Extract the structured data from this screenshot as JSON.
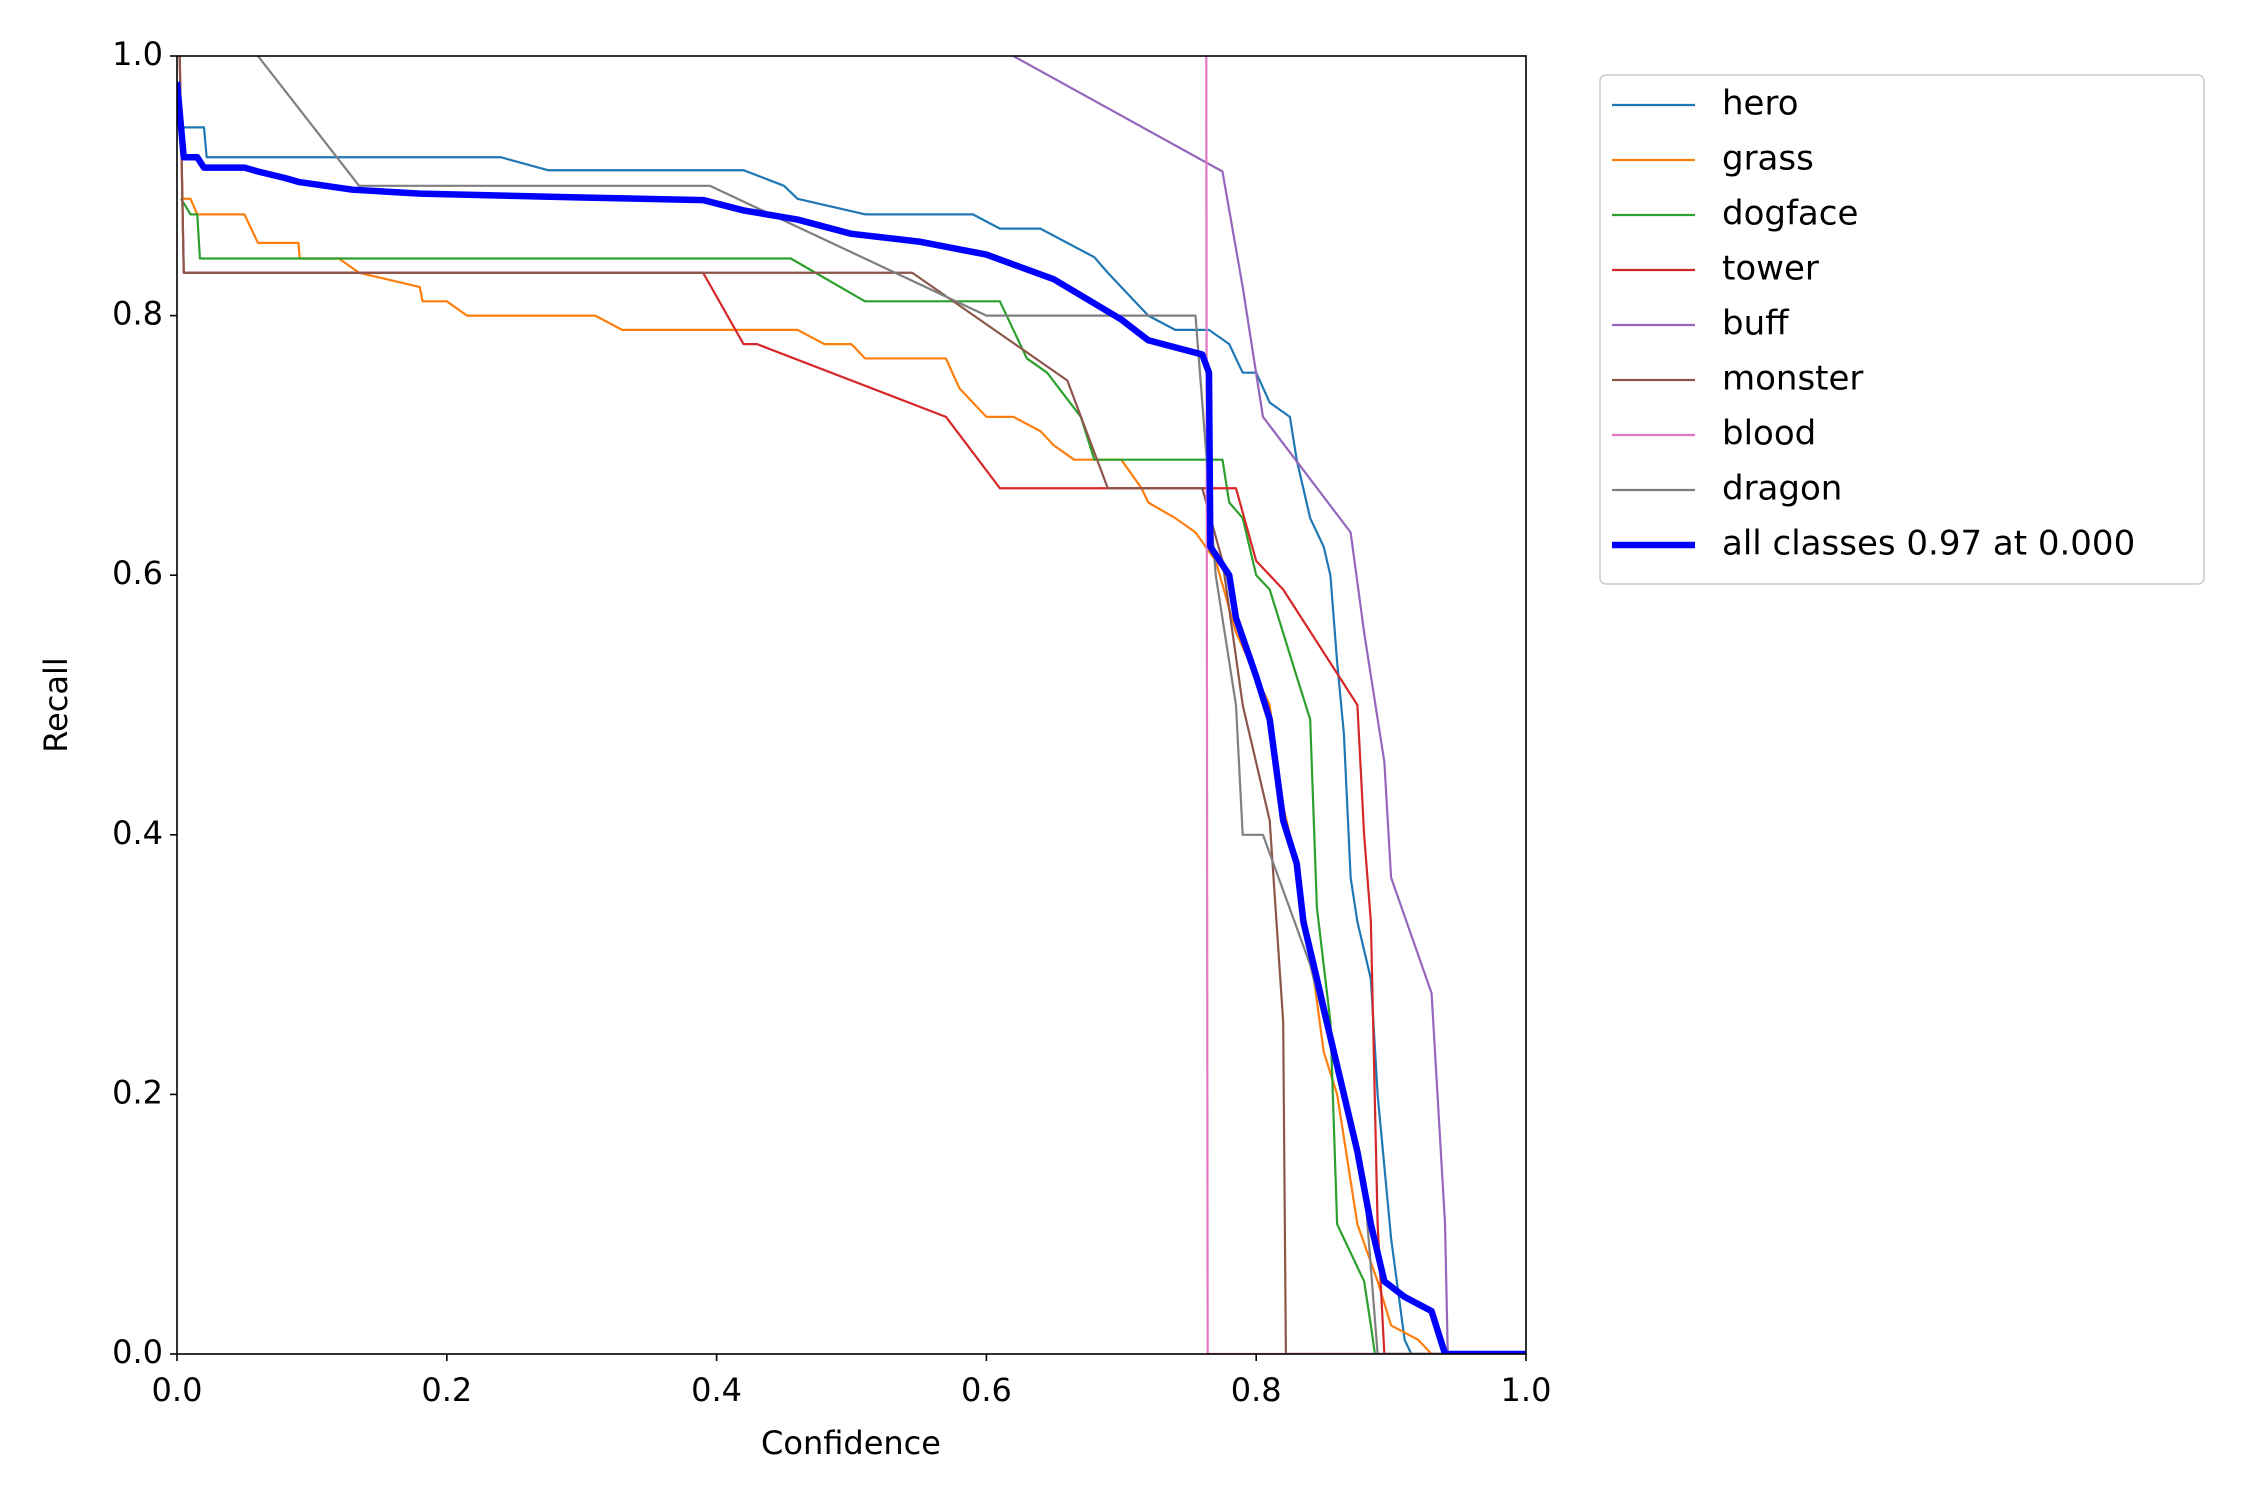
{
  "chart_data": {
    "type": "line",
    "xlabel": "Confidence",
    "ylabel": "Recall",
    "xlim": [
      0,
      1
    ],
    "ylim": [
      0,
      1
    ],
    "xticks": [
      {
        "value": 0,
        "label": "0.0"
      },
      0.2,
      0.4,
      0.6,
      0.8,
      {
        "value": 1,
        "label": "1.0"
      }
    ],
    "yticks": [
      {
        "value": 0,
        "label": "0.0"
      },
      0.2,
      0.4,
      0.6,
      0.8,
      {
        "value": 1,
        "label": "1.0"
      }
    ],
    "grid": false,
    "series": [
      {
        "name": "hero",
        "color": "#1f77b4",
        "x": [
          0.005,
          0.02,
          0.022,
          0.24,
          0.275,
          0.42,
          0.45,
          0.46,
          0.51,
          0.59,
          0.61,
          0.64,
          0.68,
          0.69,
          0.71,
          0.72,
          0.74,
          0.765,
          0.78,
          0.79,
          0.8,
          0.81,
          0.825,
          0.83,
          0.84,
          0.85,
          0.855,
          0.86,
          0.865,
          0.87,
          0.875,
          0.885,
          0.89,
          0.9,
          0.91,
          0.915,
          1.0
        ],
        "values": [
          0.945,
          0.945,
          0.922,
          0.922,
          0.912,
          0.912,
          0.9,
          0.89,
          0.878,
          0.878,
          0.867,
          0.867,
          0.845,
          0.833,
          0.811,
          0.8,
          0.789,
          0.789,
          0.778,
          0.756,
          0.756,
          0.733,
          0.722,
          0.689,
          0.644,
          0.622,
          0.6,
          0.533,
          0.478,
          0.367,
          0.333,
          0.289,
          0.2,
          0.089,
          0.011,
          0.0,
          0.0
        ]
      },
      {
        "name": "grass",
        "color": "#ff7f0e",
        "x": [
          0.003,
          0.01,
          0.015,
          0.05,
          0.055,
          0.06,
          0.09,
          0.091,
          0.12,
          0.135,
          0.18,
          0.182,
          0.2,
          0.215,
          0.31,
          0.33,
          0.46,
          0.48,
          0.5,
          0.51,
          0.57,
          0.58,
          0.59,
          0.6,
          0.62,
          0.64,
          0.65,
          0.665,
          0.7,
          0.715,
          0.72,
          0.74,
          0.755,
          0.77,
          0.785,
          0.8,
          0.81,
          0.82,
          0.83,
          0.84,
          0.85,
          0.86,
          0.875,
          0.89,
          0.9,
          0.92,
          0.93,
          1.0
        ],
        "values": [
          0.89,
          0.89,
          0.878,
          0.878,
          0.867,
          0.856,
          0.856,
          0.844,
          0.844,
          0.833,
          0.822,
          0.811,
          0.811,
          0.8,
          0.8,
          0.789,
          0.789,
          0.778,
          0.778,
          0.767,
          0.767,
          0.744,
          0.733,
          0.722,
          0.722,
          0.711,
          0.7,
          0.689,
          0.689,
          0.667,
          0.656,
          0.644,
          0.633,
          0.611,
          0.556,
          0.522,
          0.5,
          0.422,
          0.378,
          0.311,
          0.233,
          0.2,
          0.1,
          0.056,
          0.022,
          0.011,
          0.0,
          0.0
        ]
      },
      {
        "name": "dogface",
        "color": "#2ca02c",
        "x": [
          0.003,
          0.01,
          0.015,
          0.017,
          0.455,
          0.51,
          0.61,
          0.63,
          0.645,
          0.67,
          0.68,
          0.775,
          0.78,
          0.79,
          0.8,
          0.81,
          0.83,
          0.84,
          0.845,
          0.855,
          0.86,
          0.865,
          0.88,
          0.885,
          0.888,
          1.0
        ],
        "values": [
          0.89,
          0.878,
          0.878,
          0.844,
          0.844,
          0.811,
          0.811,
          0.767,
          0.756,
          0.722,
          0.689,
          0.689,
          0.656,
          0.644,
          0.6,
          0.589,
          0.522,
          0.489,
          0.344,
          0.256,
          0.1,
          0.089,
          0.056,
          0.022,
          0.0,
          0.0
        ]
      },
      {
        "name": "tower",
        "color": "#d62728",
        "x": [
          0.002,
          0.005,
          0.39,
          0.42,
          0.43,
          0.57,
          0.61,
          0.785,
          0.8,
          0.82,
          0.875,
          0.88,
          0.885,
          0.89,
          0.895,
          1.0
        ],
        "values": [
          1.0,
          0.833,
          0.833,
          0.778,
          0.778,
          0.722,
          0.667,
          0.667,
          0.611,
          0.589,
          0.5,
          0.4,
          0.333,
          0.1,
          0.0,
          0.0
        ]
      },
      {
        "name": "buff",
        "color": "#9467bd",
        "x": [
          0.62,
          0.775,
          0.79,
          0.805,
          0.87,
          0.88,
          0.895,
          0.9,
          0.93,
          0.935,
          0.94,
          0.942,
          1.0
        ],
        "values": [
          1.0,
          0.911,
          0.822,
          0.722,
          0.633,
          0.556,
          0.456,
          0.367,
          0.278,
          0.189,
          0.1,
          0.0,
          0.0
        ]
      },
      {
        "name": "monster",
        "color": "#8c564b",
        "x": [
          0.002,
          0.005,
          0.545,
          0.66,
          0.69,
          0.76,
          0.775,
          0.79,
          0.81,
          0.82,
          0.822,
          1.0
        ],
        "values": [
          1.0,
          0.833,
          0.833,
          0.75,
          0.667,
          0.667,
          0.611,
          0.5,
          0.411,
          0.256,
          0.0,
          0.0
        ]
      },
      {
        "name": "blood",
        "color": "#e377c2",
        "x": [
          0.763,
          0.764,
          1.0
        ],
        "values": [
          1.0,
          0.0,
          0.0
        ]
      },
      {
        "name": "dragon",
        "color": "#7f7f7f",
        "x": [
          0.06,
          0.135,
          0.395,
          0.6,
          0.755,
          0.77,
          0.785,
          0.79,
          0.805,
          0.84,
          0.88,
          0.89,
          1.0
        ],
        "values": [
          1.0,
          0.9,
          0.9,
          0.8,
          0.8,
          0.6,
          0.5,
          0.4,
          0.4,
          0.3,
          0.133,
          0.0,
          0.0
        ]
      },
      {
        "name": "all classes 0.97 at 0.000",
        "color": "#0000ff",
        "line_width": 6.5,
        "x": [
          0.0,
          0.005,
          0.015,
          0.02,
          0.05,
          0.06,
          0.08,
          0.09,
          0.13,
          0.18,
          0.3,
          0.39,
          0.42,
          0.46,
          0.5,
          0.55,
          0.6,
          0.65,
          0.7,
          0.72,
          0.76,
          0.765,
          0.766,
          0.78,
          0.785,
          0.8,
          0.81,
          0.82,
          0.83,
          0.835,
          0.845,
          0.855,
          0.865,
          0.875,
          0.885,
          0.895,
          0.91,
          0.93,
          0.94,
          1.0
        ],
        "values": [
          0.98,
          0.922,
          0.922,
          0.914,
          0.914,
          0.911,
          0.906,
          0.903,
          0.897,
          0.894,
          0.891,
          0.889,
          0.881,
          0.874,
          0.863,
          0.857,
          0.847,
          0.828,
          0.797,
          0.781,
          0.77,
          0.756,
          0.622,
          0.6,
          0.567,
          0.522,
          0.489,
          0.411,
          0.378,
          0.333,
          0.289,
          0.244,
          0.2,
          0.156,
          0.1,
          0.056,
          0.044,
          0.033,
          0.0,
          0.0
        ]
      }
    ]
  }
}
